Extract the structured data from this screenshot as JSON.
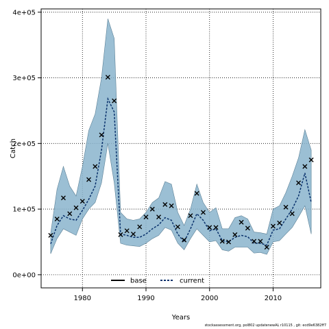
{
  "chart_data": {
    "type": "line",
    "xlabel": "Years",
    "ylabel": "Catch",
    "xlim": [
      1973.5,
      2017.5
    ],
    "ylim": [
      -20000,
      405000
    ],
    "x_ticks": [
      1980,
      1990,
      2000,
      2010
    ],
    "x_tick_labels": [
      "1980",
      "1990",
      "2000",
      "2010"
    ],
    "y_ticks": [
      0,
      100000,
      200000,
      300000,
      400000
    ],
    "y_tick_labels": [
      "0e+00",
      "1e+05",
      "2e+05",
      "3e+05",
      "4e+05"
    ],
    "grid": true,
    "legend_position": "bottom",
    "colors": {
      "band": "#8ab4cc",
      "band_edge": "#5a7f95",
      "current_line": "#08306b",
      "base_line": "#000000",
      "grid": "#000000"
    },
    "series": [
      {
        "name": "base",
        "style": "solid-line",
        "x": [],
        "values": []
      },
      {
        "name": "current",
        "style": "dashed-line",
        "x": [
          1975,
          1976,
          1977,
          1978,
          1979,
          1980,
          1981,
          1982,
          1983,
          1984,
          1985,
          1986,
          1987,
          1988,
          1989,
          1990,
          1991,
          1992,
          1993,
          1994,
          1995,
          1996,
          1997,
          1998,
          1999,
          2000,
          2001,
          2002,
          2003,
          2004,
          2005,
          2006,
          2007,
          2008,
          2009,
          2010,
          2011,
          2012,
          2013,
          2014,
          2015,
          2016
        ],
        "values": [
          47000,
          75000,
          90000,
          85000,
          83000,
          98000,
          115000,
          135000,
          190000,
          268000,
          248000,
          62000,
          60000,
          57000,
          57000,
          62000,
          70000,
          76000,
          87000,
          83000,
          62000,
          50000,
          70000,
          93000,
          83000,
          67000,
          70000,
          52000,
          50000,
          57000,
          60000,
          58000,
          48000,
          48000,
          45000,
          68000,
          70000,
          85000,
          100000,
          120000,
          155000,
          110000
        ]
      }
    ],
    "uncertainty_band": {
      "x": [
        1975,
        1976,
        1977,
        1978,
        1979,
        1980,
        1981,
        1982,
        1983,
        1984,
        1985,
        1986,
        1987,
        1988,
        1989,
        1990,
        1991,
        1992,
        1993,
        1994,
        1995,
        1996,
        1997,
        1998,
        1999,
        2000,
        2001,
        2002,
        2003,
        2004,
        2005,
        2006,
        2007,
        2008,
        2009,
        2010,
        2011,
        2012,
        2013,
        2014,
        2015,
        2016
      ],
      "lower": [
        32000,
        55000,
        70000,
        65000,
        60000,
        85000,
        100000,
        110000,
        140000,
        200000,
        140000,
        48000,
        45000,
        44000,
        43000,
        48000,
        55000,
        60000,
        72000,
        68000,
        48000,
        38000,
        55000,
        70000,
        60000,
        50000,
        52000,
        38000,
        36000,
        42000,
        42000,
        42000,
        33000,
        34000,
        31000,
        50000,
        52000,
        62000,
        72000,
        88000,
        105000,
        62000
      ],
      "upper": [
        63000,
        130000,
        165000,
        135000,
        120000,
        165000,
        220000,
        245000,
        300000,
        390000,
        360000,
        95000,
        85000,
        83000,
        85000,
        95000,
        110000,
        117000,
        142000,
        138000,
        95000,
        75000,
        100000,
        138000,
        110000,
        95000,
        102000,
        70000,
        70000,
        87000,
        90000,
        85000,
        65000,
        64000,
        62000,
        100000,
        105000,
        125000,
        150000,
        178000,
        221000,
        190000
      ]
    },
    "observed": {
      "x": [
        1975,
        1976,
        1977,
        1978,
        1979,
        1980,
        1981,
        1982,
        1983,
        1984,
        1985,
        1986,
        1987,
        1988,
        1989,
        1990,
        1991,
        1992,
        1993,
        1994,
        1995,
        1996,
        1997,
        1998,
        1999,
        2000,
        2001,
        2002,
        2003,
        2004,
        2005,
        2006,
        2007,
        2008,
        2009,
        2010,
        2011,
        2012,
        2013,
        2014,
        2015,
        2016
      ],
      "values": [
        60000,
        85000,
        117000,
        93000,
        102000,
        112000,
        145000,
        165000,
        213000,
        301000,
        265000,
        61000,
        67000,
        62000,
        73000,
        88000,
        100000,
        88000,
        107000,
        105000,
        73000,
        53000,
        90000,
        124000,
        95000,
        72000,
        72000,
        51000,
        50000,
        61000,
        80000,
        71000,
        51000,
        51000,
        42000,
        74000,
        79000,
        103000,
        93000,
        140000,
        165000,
        175000
      ]
    }
  },
  "footnote": "stockassessment.org, pol802 updatenewAL r10115 , git: ecd9e6382ff7"
}
